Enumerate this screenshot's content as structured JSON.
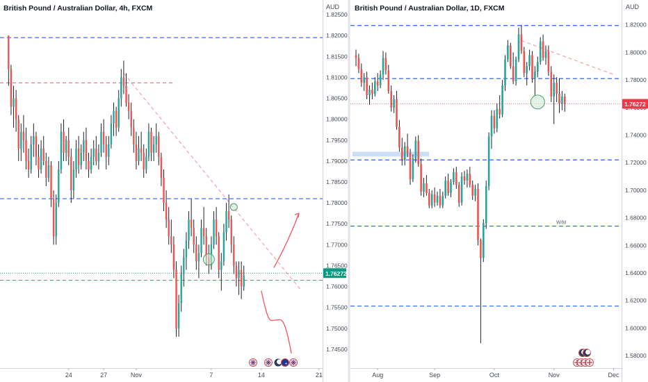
{
  "colors": {
    "up": "#26a69a",
    "down": "#ef5350",
    "wick": "#1e222d",
    "axis_line": "#d1d4dc",
    "blue_level": "#2962ff",
    "red_level": "#f23645",
    "last_price_left": "#089981",
    "last_price_right": "#f23645",
    "projection": "#f7525f",
    "support_zone": "#bbd3f3",
    "circle_fill": "#cde8d6",
    "circle_stroke": "#4c9a67"
  },
  "icons": [
    "flag-uk-icon",
    "flag-au-icon",
    "event-moon-icon"
  ],
  "chart_data": [
    {
      "type": "candlestick",
      "title": "British Pound / Australian Dollar, 4h, FXCM",
      "y_unit": "AUD",
      "ylim": [
        1.7405,
        1.8285
      ],
      "y_ticks": [
        "1.82500",
        "1.82000",
        "1.81500",
        "1.81000",
        "1.80500",
        "1.80000",
        "1.79500",
        "1.79000",
        "1.78500",
        "1.78000",
        "1.77500",
        "1.77000",
        "1.76500",
        "1.76000",
        "1.75500",
        "1.75000",
        "1.74500"
      ],
      "x_ticks": [
        "24",
        "27",
        "Nov",
        "7",
        "14",
        "21"
      ],
      "x_tick_index": [
        24,
        38,
        51,
        81,
        101,
        124
      ],
      "x_count": 125,
      "last_price": "1.76272",
      "last_price_value": 1.7627,
      "blue_levels": [
        1.8195,
        1.781
      ],
      "red_levels": [
        1.8087,
        1.7615
      ],
      "trendline": {
        "from": [
          46,
          1.811
        ],
        "to": [
          117,
          1.759
        ]
      },
      "circles": [
        [
          80,
          1.7665
        ],
        [
          90,
          1.779
        ]
      ],
      "candles": [
        [
          1.82,
          1.82,
          1.808,
          1.812
        ],
        [
          1.812,
          1.813,
          1.801,
          1.803
        ],
        [
          1.803,
          1.808,
          1.798,
          1.805
        ],
        [
          1.805,
          1.807,
          1.797,
          1.8
        ],
        [
          1.8,
          1.801,
          1.79,
          1.793
        ],
        [
          1.793,
          1.799,
          1.79,
          1.797
        ],
        [
          1.797,
          1.801,
          1.792,
          1.795
        ],
        [
          1.795,
          1.798,
          1.788,
          1.79
        ],
        [
          1.79,
          1.793,
          1.786,
          1.788
        ],
        [
          1.788,
          1.796,
          1.787,
          1.794
        ],
        [
          1.794,
          1.799,
          1.791,
          1.796
        ],
        [
          1.796,
          1.797,
          1.789,
          1.791
        ],
        [
          1.791,
          1.794,
          1.786,
          1.788
        ],
        [
          1.788,
          1.795,
          1.787,
          1.793
        ],
        [
          1.793,
          1.796,
          1.789,
          1.79
        ],
        [
          1.79,
          1.792,
          1.784,
          1.786
        ],
        [
          1.786,
          1.791,
          1.785,
          1.789
        ],
        [
          1.789,
          1.79,
          1.779,
          1.781
        ],
        [
          1.781,
          1.783,
          1.77,
          1.772
        ],
        [
          1.772,
          1.782,
          1.77,
          1.78
        ],
        [
          1.78,
          1.79,
          1.779,
          1.788
        ],
        [
          1.788,
          1.799,
          1.787,
          1.797
        ],
        [
          1.797,
          1.8,
          1.79,
          1.792
        ],
        [
          1.792,
          1.796,
          1.79,
          1.795
        ],
        [
          1.795,
          1.798,
          1.789,
          1.791
        ],
        [
          1.791,
          1.793,
          1.78,
          1.783
        ],
        [
          1.783,
          1.79,
          1.781,
          1.788
        ],
        [
          1.788,
          1.795,
          1.786,
          1.793
        ],
        [
          1.793,
          1.796,
          1.787,
          1.789
        ],
        [
          1.789,
          1.794,
          1.788,
          1.792
        ],
        [
          1.792,
          1.797,
          1.79,
          1.795
        ],
        [
          1.795,
          1.798,
          1.788,
          1.79
        ],
        [
          1.79,
          1.792,
          1.786,
          1.788
        ],
        [
          1.788,
          1.793,
          1.787,
          1.791
        ],
        [
          1.791,
          1.795,
          1.789,
          1.793
        ],
        [
          1.793,
          1.796,
          1.789,
          1.79
        ],
        [
          1.79,
          1.794,
          1.788,
          1.792
        ],
        [
          1.792,
          1.799,
          1.791,
          1.797
        ],
        [
          1.797,
          1.8,
          1.792,
          1.794
        ],
        [
          1.794,
          1.796,
          1.788,
          1.791
        ],
        [
          1.791,
          1.796,
          1.789,
          1.794
        ],
        [
          1.794,
          1.801,
          1.793,
          1.799
        ],
        [
          1.799,
          1.804,
          1.796,
          1.802
        ],
        [
          1.802,
          1.803,
          1.796,
          1.798
        ],
        [
          1.798,
          1.807,
          1.797,
          1.805
        ],
        [
          1.805,
          1.812,
          1.803,
          1.81
        ],
        [
          1.81,
          1.814,
          1.806,
          1.808
        ],
        [
          1.808,
          1.811,
          1.803,
          1.804
        ],
        [
          1.804,
          1.806,
          1.8,
          1.802
        ],
        [
          1.802,
          1.804,
          1.796,
          1.798
        ],
        [
          1.798,
          1.8,
          1.792,
          1.794
        ],
        [
          1.794,
          1.797,
          1.788,
          1.79
        ],
        [
          1.79,
          1.796,
          1.789,
          1.793
        ],
        [
          1.793,
          1.797,
          1.79,
          1.792
        ],
        [
          1.792,
          1.794,
          1.786,
          1.788
        ],
        [
          1.788,
          1.793,
          1.787,
          1.791
        ],
        [
          1.791,
          1.799,
          1.79,
          1.797
        ],
        [
          1.797,
          1.798,
          1.79,
          1.792
        ],
        [
          1.792,
          1.796,
          1.79,
          1.794
        ],
        [
          1.794,
          1.799,
          1.792,
          1.796
        ],
        [
          1.796,
          1.797,
          1.789,
          1.791
        ],
        [
          1.791,
          1.792,
          1.784,
          1.786
        ],
        [
          1.786,
          1.788,
          1.778,
          1.78
        ],
        [
          1.78,
          1.783,
          1.774,
          1.776
        ],
        [
          1.776,
          1.779,
          1.77,
          1.772
        ],
        [
          1.772,
          1.776,
          1.768,
          1.77
        ],
        [
          1.77,
          1.772,
          1.762,
          1.764
        ],
        [
          1.764,
          1.766,
          1.748,
          1.75
        ],
        [
          1.75,
          1.758,
          1.748,
          1.756
        ],
        [
          1.756,
          1.765,
          1.754,
          1.763
        ],
        [
          1.763,
          1.769,
          1.76,
          1.767
        ],
        [
          1.767,
          1.773,
          1.764,
          1.771
        ],
        [
          1.771,
          1.778,
          1.769,
          1.776
        ],
        [
          1.776,
          1.781,
          1.772,
          1.774
        ],
        [
          1.774,
          1.776,
          1.768,
          1.77
        ],
        [
          1.77,
          1.772,
          1.764,
          1.766
        ],
        [
          1.766,
          1.77,
          1.762,
          1.768
        ],
        [
          1.768,
          1.776,
          1.767,
          1.774
        ],
        [
          1.774,
          1.779,
          1.77,
          1.772
        ],
        [
          1.772,
          1.774,
          1.765,
          1.767
        ],
        [
          1.767,
          1.77,
          1.763,
          1.765
        ],
        [
          1.765,
          1.772,
          1.764,
          1.77
        ],
        [
          1.77,
          1.778,
          1.769,
          1.776
        ],
        [
          1.776,
          1.779,
          1.77,
          1.772
        ],
        [
          1.772,
          1.773,
          1.762,
          1.764
        ],
        [
          1.764,
          1.768,
          1.759,
          1.766
        ],
        [
          1.766,
          1.775,
          1.765,
          1.773
        ],
        [
          1.773,
          1.78,
          1.771,
          1.778
        ],
        [
          1.778,
          1.782,
          1.774,
          1.776
        ],
        [
          1.776,
          1.777,
          1.768,
          1.77
        ],
        [
          1.77,
          1.772,
          1.763,
          1.765
        ],
        [
          1.765,
          1.766,
          1.76,
          1.762
        ],
        [
          1.762,
          1.766,
          1.758,
          1.764
        ],
        [
          1.764,
          1.766,
          1.757,
          1.76
        ],
        [
          1.76,
          1.765,
          1.759,
          1.7627
        ]
      ],
      "projection_up": [
        [
          106,
          1.7645
        ],
        [
          112,
          1.771
        ],
        [
          116,
          1.7775
        ]
      ],
      "projection_down": [
        [
          101,
          1.759
        ],
        [
          104,
          1.752
        ],
        [
          110,
          1.7515
        ],
        [
          113,
          1.744
        ]
      ]
    },
    {
      "type": "candlestick",
      "title": "British Pound / Australian Dollar, 1D, FXCM",
      "y_unit": "AUD",
      "ylim": [
        1.571,
        1.838
      ],
      "y_ticks": [
        "1.82000",
        "1.80000",
        "1.78000",
        "1.76000",
        "1.74000",
        "1.72000",
        "1.70000",
        "1.68000",
        "1.66000",
        "1.64000",
        "1.62000",
        "1.60000",
        "1.58000"
      ],
      "x_ticks": [
        "Aug",
        "Sep",
        "Oct",
        "Nov",
        "Dec"
      ],
      "x_tick_index": [
        8,
        29,
        51,
        73,
        95
      ],
      "x_count": 98,
      "last_price": "1.76272",
      "last_price_value": 1.7627,
      "blue_levels": [
        1.8195,
        1.781,
        1.722,
        1.674,
        1.616
      ],
      "red_levels": [
        1.7627
      ],
      "trendline": {
        "from": [
          61,
          1.8085
        ],
        "to": [
          95,
          1.784
        ]
      },
      "zone": [
        1.728,
        1.7245
      ],
      "circles": [
        [
          67,
          1.764
        ]
      ],
      "annotation": "W/M",
      "candles": [
        [
          1.798,
          1.802,
          1.79,
          1.796
        ],
        [
          1.796,
          1.799,
          1.785,
          1.788
        ],
        [
          1.788,
          1.792,
          1.775,
          1.778
        ],
        [
          1.778,
          1.785,
          1.772,
          1.782
        ],
        [
          1.782,
          1.786,
          1.766,
          1.769
        ],
        [
          1.769,
          1.776,
          1.762,
          1.773
        ],
        [
          1.773,
          1.778,
          1.766,
          1.77
        ],
        [
          1.77,
          1.782,
          1.768,
          1.779
        ],
        [
          1.779,
          1.785,
          1.772,
          1.776
        ],
        [
          1.776,
          1.787,
          1.774,
          1.784
        ],
        [
          1.784,
          1.801,
          1.78,
          1.796
        ],
        [
          1.796,
          1.8,
          1.784,
          1.787
        ],
        [
          1.787,
          1.791,
          1.77,
          1.772
        ],
        [
          1.772,
          1.776,
          1.757,
          1.76
        ],
        [
          1.76,
          1.769,
          1.756,
          1.766
        ],
        [
          1.766,
          1.772,
          1.744,
          1.746
        ],
        [
          1.746,
          1.751,
          1.728,
          1.731
        ],
        [
          1.731,
          1.738,
          1.718,
          1.722
        ],
        [
          1.722,
          1.735,
          1.718,
          1.732
        ],
        [
          1.732,
          1.741,
          1.724,
          1.727
        ],
        [
          1.727,
          1.73,
          1.704,
          1.708
        ],
        [
          1.708,
          1.726,
          1.706,
          1.723
        ],
        [
          1.723,
          1.739,
          1.72,
          1.736
        ],
        [
          1.736,
          1.74,
          1.717,
          1.719
        ],
        [
          1.719,
          1.723,
          1.696,
          1.699
        ],
        [
          1.699,
          1.709,
          1.695,
          1.705
        ],
        [
          1.705,
          1.711,
          1.696,
          1.698
        ],
        [
          1.698,
          1.701,
          1.687,
          1.689
        ],
        [
          1.689,
          1.7,
          1.687,
          1.697
        ],
        [
          1.697,
          1.702,
          1.688,
          1.691
        ],
        [
          1.691,
          1.699,
          1.689,
          1.696
        ],
        [
          1.696,
          1.701,
          1.687,
          1.689
        ],
        [
          1.689,
          1.699,
          1.687,
          1.696
        ],
        [
          1.696,
          1.71,
          1.694,
          1.707
        ],
        [
          1.707,
          1.712,
          1.696,
          1.698
        ],
        [
          1.698,
          1.708,
          1.695,
          1.706
        ],
        [
          1.706,
          1.716,
          1.704,
          1.713
        ],
        [
          1.713,
          1.717,
          1.701,
          1.704
        ],
        [
          1.704,
          1.706,
          1.688,
          1.691
        ],
        [
          1.691,
          1.713,
          1.689,
          1.71
        ],
        [
          1.71,
          1.714,
          1.704,
          1.707
        ],
        [
          1.707,
          1.715,
          1.702,
          1.712
        ],
        [
          1.712,
          1.717,
          1.702,
          1.704
        ],
        [
          1.704,
          1.707,
          1.693,
          1.696
        ],
        [
          1.696,
          1.704,
          1.692,
          1.701
        ],
        [
          1.701,
          1.705,
          1.66,
          1.664
        ],
        [
          1.664,
          1.665,
          1.589,
          1.651
        ],
        [
          1.651,
          1.679,
          1.648,
          1.676
        ],
        [
          1.676,
          1.707,
          1.672,
          1.703
        ],
        [
          1.703,
          1.742,
          1.7,
          1.739
        ],
        [
          1.739,
          1.758,
          1.73,
          1.754
        ],
        [
          1.754,
          1.758,
          1.741,
          1.745
        ],
        [
          1.745,
          1.763,
          1.742,
          1.759
        ],
        [
          1.759,
          1.769,
          1.752,
          1.755
        ],
        [
          1.755,
          1.78,
          1.753,
          1.776
        ],
        [
          1.776,
          1.798,
          1.772,
          1.795
        ],
        [
          1.795,
          1.809,
          1.793,
          1.805
        ],
        [
          1.805,
          1.807,
          1.788,
          1.79
        ],
        [
          1.79,
          1.8,
          1.777,
          1.779
        ],
        [
          1.779,
          1.797,
          1.776,
          1.795
        ],
        [
          1.795,
          1.818,
          1.793,
          1.813
        ],
        [
          1.813,
          1.82,
          1.799,
          1.801
        ],
        [
          1.801,
          1.804,
          1.782,
          1.785
        ],
        [
          1.785,
          1.793,
          1.776,
          1.79
        ],
        [
          1.79,
          1.802,
          1.787,
          1.798
        ],
        [
          1.798,
          1.801,
          1.778,
          1.781
        ],
        [
          1.781,
          1.79,
          1.769,
          1.786
        ],
        [
          1.786,
          1.797,
          1.782,
          1.793
        ],
        [
          1.793,
          1.811,
          1.791,
          1.808
        ],
        [
          1.808,
          1.813,
          1.794,
          1.796
        ],
        [
          1.796,
          1.805,
          1.791,
          1.801
        ],
        [
          1.801,
          1.805,
          1.783,
          1.786
        ],
        [
          1.786,
          1.79,
          1.764,
          1.768
        ],
        [
          1.768,
          1.784,
          1.748,
          1.778
        ],
        [
          1.778,
          1.782,
          1.764,
          1.77
        ],
        [
          1.77,
          1.781,
          1.756,
          1.763
        ],
        [
          1.763,
          1.772,
          1.758,
          1.768
        ],
        [
          1.768,
          1.77,
          1.757,
          1.7627
        ]
      ]
    }
  ]
}
